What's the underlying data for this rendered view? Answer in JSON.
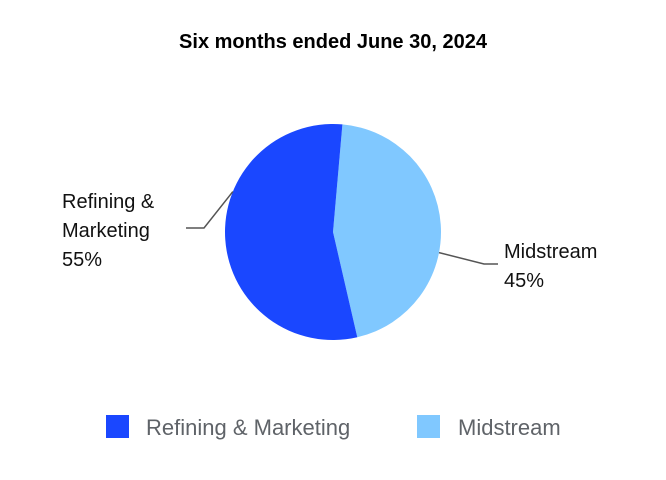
{
  "chart_data": {
    "type": "pie",
    "title": "Six months ended June 30, 2024",
    "slices": [
      {
        "name": "Refining & Marketing",
        "label_lines": [
          "Refining &",
          "Marketing"
        ],
        "value": 55,
        "value_label": "55%",
        "color": "#1a47ff"
      },
      {
        "name": "Midstream",
        "label_lines": [
          "Midstream"
        ],
        "value": 45,
        "value_label": "45%",
        "color": "#80c8ff"
      }
    ],
    "legend": {
      "placement": "bottom",
      "entries": [
        "Refining & Marketing",
        "Midstream"
      ]
    }
  }
}
